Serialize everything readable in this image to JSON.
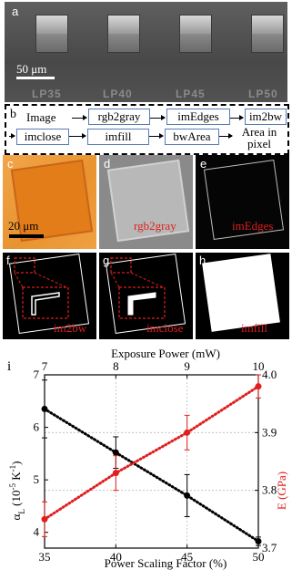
{
  "panel_a": {
    "label": "a",
    "scale_text": "50 μm",
    "pillar_labels": [
      "LP35",
      "LP40",
      "LP45",
      "LP50"
    ]
  },
  "panel_b": {
    "label": "b",
    "steps_row1": [
      "Image",
      "rgb2gray",
      "imEdges",
      "im2bw"
    ],
    "steps_row2": [
      "imclose",
      "imfill",
      "bwArea",
      "Area in pixel"
    ]
  },
  "panels_cde": {
    "c": {
      "label": "c",
      "scale_text": "20 μm"
    },
    "d": {
      "label": "d",
      "caption": "rgb2gray"
    },
    "e": {
      "label": "e",
      "caption": "imEdges"
    }
  },
  "panels_fgh": {
    "f": {
      "label": "f",
      "caption": "im2bw"
    },
    "g": {
      "label": "g",
      "caption": "imclose"
    },
    "h": {
      "label": "h",
      "caption": "imfill"
    }
  },
  "colors": {
    "black_series": "#000000",
    "red_series": "#e01e1e",
    "box_border": "#5a7bb3"
  },
  "chart_data": {
    "type": "scatter",
    "panel_label": "i",
    "xlabel": "Power Scaling Factor (%)",
    "x2label": "Exposure Power (mW)",
    "ylabel": "α",
    "ylabel_sub": "L",
    "ylabel_unit": "(10",
    "ylabel_exp": "-5",
    "ylabel_end": " K",
    "ylabel_exp2": "-1",
    "ylabel_close": ")",
    "y2label": "E (GPa)",
    "x_ticks": [
      "35",
      "40",
      "45",
      "50"
    ],
    "x2_ticks": [
      "7",
      "8",
      "9",
      "10"
    ],
    "y_ticks": [
      "4",
      "5",
      "6",
      "7"
    ],
    "y2_ticks": [
      "3.7",
      "3.8",
      "3.9",
      "4.0"
    ],
    "xlim": [
      35,
      50
    ],
    "ylim": [
      3.7,
      7.0
    ],
    "y2lim": [
      3.7,
      4.0
    ],
    "grid": true,
    "series": [
      {
        "x": [
          35,
          40,
          45,
          50
        ],
        "values": [
          6.35,
          5.52,
          4.7,
          3.83
        ],
        "errors": [
          0.55,
          0.3,
          0.4,
          0.08
        ],
        "axis": "left",
        "color": "#000000"
      },
      {
        "x": [
          35,
          40,
          45,
          50
        ],
        "values": [
          3.75,
          3.83,
          3.9,
          3.98
        ],
        "errors": [
          0.03,
          0.03,
          0.03,
          0.02
        ],
        "axis": "right",
        "color": "#e01e1e"
      }
    ]
  }
}
